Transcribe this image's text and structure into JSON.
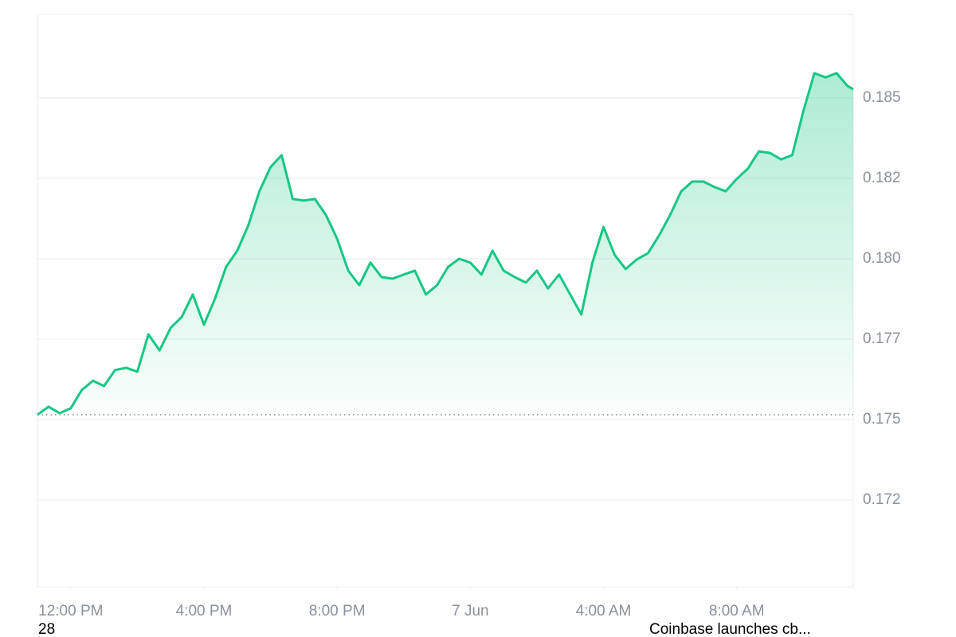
{
  "chart_data": {
    "type": "line",
    "x": [
      "6 Jun 11:00",
      "6 Jun 11:20",
      "6 Jun 11:40",
      "6 Jun 12:00",
      "6 Jun 12:20",
      "6 Jun 12:40",
      "6 Jun 13:00",
      "6 Jun 13:20",
      "6 Jun 13:40",
      "6 Jun 14:00",
      "6 Jun 14:20",
      "6 Jun 14:40",
      "6 Jun 15:00",
      "6 Jun 15:20",
      "6 Jun 15:40",
      "6 Jun 16:00",
      "6 Jun 16:20",
      "6 Jun 16:40",
      "6 Jun 17:00",
      "6 Jun 17:20",
      "6 Jun 17:40",
      "6 Jun 18:00",
      "6 Jun 18:20",
      "6 Jun 18:40",
      "6 Jun 19:00",
      "6 Jun 19:20",
      "6 Jun 19:40",
      "6 Jun 20:00",
      "6 Jun 20:20",
      "6 Jun 20:40",
      "6 Jun 21:00",
      "6 Jun 21:20",
      "6 Jun 21:40",
      "6 Jun 22:00",
      "6 Jun 22:20",
      "6 Jun 22:40",
      "6 Jun 23:00",
      "6 Jun 23:20",
      "6 Jun 23:40",
      "7 Jun 00:00",
      "7 Jun 00:20",
      "7 Jun 00:40",
      "7 Jun 01:00",
      "7 Jun 01:20",
      "7 Jun 01:40",
      "7 Jun 02:00",
      "7 Jun 02:20",
      "7 Jun 02:40",
      "7 Jun 03:00",
      "7 Jun 03:20",
      "7 Jun 03:40",
      "7 Jun 04:00",
      "7 Jun 04:20",
      "7 Jun 04:40",
      "7 Jun 05:00",
      "7 Jun 05:20",
      "7 Jun 05:40",
      "7 Jun 06:00",
      "7 Jun 06:20",
      "7 Jun 06:40",
      "7 Jun 07:00",
      "7 Jun 07:20",
      "7 Jun 07:40",
      "7 Jun 08:00",
      "7 Jun 08:20",
      "7 Jun 08:40",
      "7 Jun 09:00",
      "7 Jun 09:20",
      "7 Jun 09:40",
      "7 Jun 10:00",
      "7 Jun 10:20",
      "7 Jun 10:40",
      "7 Jun 11:00",
      "7 Jun 11:20",
      "7 Jun 11:30"
    ],
    "series": [
      {
        "color": "#16c784",
        "values": [
          0.17515,
          0.1754,
          0.1752,
          0.17535,
          0.17592,
          0.17621,
          0.17604,
          0.17654,
          0.17661,
          0.17649,
          0.17765,
          0.17715,
          0.17785,
          0.17819,
          0.17889,
          0.17795,
          0.17876,
          0.17975,
          0.18025,
          0.18104,
          0.1821,
          0.18285,
          0.18322,
          0.18186,
          0.18181,
          0.18186,
          0.18136,
          0.18062,
          0.17963,
          0.17918,
          0.17988,
          0.17943,
          0.17938,
          0.17951,
          0.17963,
          0.17889,
          0.17918,
          0.17975,
          0.18,
          0.17988,
          0.17951,
          0.18025,
          0.17963,
          0.17943,
          0.17926,
          0.17963,
          0.17908,
          0.17951,
          0.17889,
          0.17827,
          0.17988,
          0.18099,
          0.18012,
          0.17968,
          0.17998,
          0.18017,
          0.18072,
          0.18136,
          0.1821,
          0.1824,
          0.1824,
          0.18223,
          0.1821,
          0.18248,
          0.1828,
          0.18334,
          0.18329,
          0.18309,
          0.18322,
          0.18458,
          0.18577,
          0.18564,
          0.18577,
          0.18537,
          0.18527
        ]
      }
    ],
    "baseline": 0.17515,
    "xlim": [
      "6 Jun 11:00",
      "7 Jun 11:30"
    ],
    "xticks": [
      {
        "value": "6 Jun 12:00",
        "label": "12:00 PM"
      },
      {
        "value": "6 Jun 16:00",
        "label": "4:00 PM"
      },
      {
        "value": "6 Jun 20:00",
        "label": "8:00 PM"
      },
      {
        "value": "7 Jun 00:00",
        "label": "7 Jun"
      },
      {
        "value": "7 Jun 04:00",
        "label": "4:00 AM"
      },
      {
        "value": "7 Jun 08:00",
        "label": "8:00 AM"
      }
    ],
    "ylim": [
      0.1698,
      0.1876
    ],
    "yticks": [
      {
        "value": 0.1725,
        "label": "0.172"
      },
      0.175,
      {
        "value": 0.1775,
        "label": "0.177"
      },
      {
        "value": 0.18,
        "label": "0.180"
      },
      {
        "value": 0.1825,
        "label": "0.182"
      },
      0.185
    ],
    "grid": true,
    "annotations": [
      "28",
      "Coinbase launches cb..."
    ]
  }
}
